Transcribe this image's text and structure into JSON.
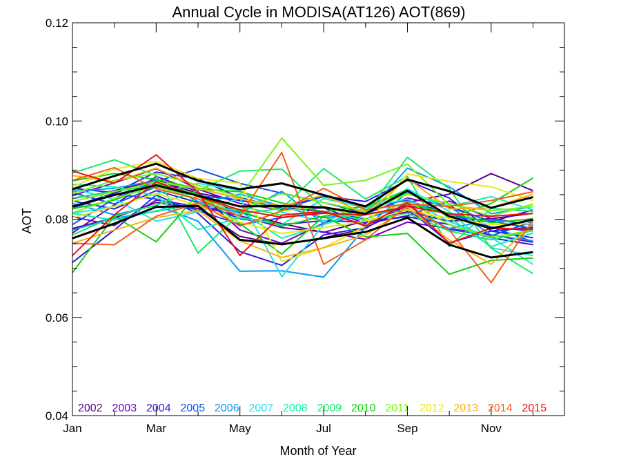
{
  "chart_data": {
    "type": "line",
    "title": "Annual Cycle in MODISA(AT126) AOT(869)",
    "xlabel": "Month of Year",
    "ylabel": "AOT",
    "xlim": [
      1,
      12.75
    ],
    "ylim": [
      0.04,
      0.12
    ],
    "x_ticks": [
      {
        "value": 1,
        "label": "Jan"
      },
      {
        "value": 3,
        "label": "Mar"
      },
      {
        "value": 5,
        "label": "May"
      },
      {
        "value": 7,
        "label": "Jul"
      },
      {
        "value": 9,
        "label": "Sep"
      },
      {
        "value": 11,
        "label": "Nov"
      }
    ],
    "y_ticks": [
      {
        "value": 0.04,
        "label": "0.04"
      },
      {
        "value": 0.06,
        "label": "0.06"
      },
      {
        "value": 0.08,
        "label": "0.08"
      },
      {
        "value": 0.1,
        "label": "0.10"
      },
      {
        "value": 0.12,
        "label": "0.12"
      }
    ],
    "x": [
      1,
      2,
      3,
      4,
      5,
      6,
      7,
      8,
      9,
      10,
      11,
      12
    ],
    "grid": false,
    "legend_position": "bottom-inside",
    "series": [
      {
        "name": "2002",
        "color": "#550088",
        "values": [
          0.0826,
          0.0853,
          0.0882,
          0.0846,
          0.0814,
          0.0791,
          0.0773,
          0.0797,
          0.0815,
          0.0796,
          0.0801,
          0.0812
        ]
      },
      {
        "name": "2002",
        "color": "#550088",
        "values": [
          0.0781,
          0.0803,
          0.0834,
          0.0822,
          0.0765,
          0.0748,
          0.0762,
          0.0781,
          0.0834,
          0.0851,
          0.0893,
          0.0858
        ]
      },
      {
        "name": "2002",
        "color": "#550088",
        "values": [
          0.0842,
          0.0858,
          0.0879,
          0.0853,
          0.0838,
          0.0824,
          0.0816,
          0.0787,
          0.0828,
          0.0812,
          0.0784,
          0.0776
        ]
      },
      {
        "name": "2003",
        "color": "#6a00c0",
        "values": [
          0.0772,
          0.0829,
          0.0887,
          0.0856,
          0.0778,
          0.0751,
          0.0792,
          0.0811,
          0.0843,
          0.0826,
          0.0795,
          0.0819
        ]
      },
      {
        "name": "2003",
        "color": "#6a00c0",
        "values": [
          0.0848,
          0.0874,
          0.0903,
          0.0861,
          0.0832,
          0.0819,
          0.0823,
          0.0791,
          0.0807,
          0.0837,
          0.0801,
          0.0788
        ]
      },
      {
        "name": "2003",
        "color": "#6a00c0",
        "values": [
          0.0805,
          0.0787,
          0.0839,
          0.0826,
          0.0807,
          0.0783,
          0.0774,
          0.0759,
          0.0794,
          0.0781,
          0.0768,
          0.0753
        ]
      },
      {
        "name": "2004",
        "color": "#2a1adc",
        "values": [
          0.0712,
          0.0778,
          0.0849,
          0.0812,
          0.0734,
          0.0706,
          0.0768,
          0.0783,
          0.0822,
          0.0752,
          0.0776,
          0.0762
        ]
      },
      {
        "name": "2004",
        "color": "#2a1adc",
        "values": [
          0.0863,
          0.0854,
          0.0896,
          0.0882,
          0.0844,
          0.0823,
          0.0847,
          0.0836,
          0.0879,
          0.0843,
          0.0776,
          0.0784
        ]
      },
      {
        "name": "2004",
        "color": "#2a1adc",
        "values": [
          0.0837,
          0.0821,
          0.0858,
          0.0834,
          0.0801,
          0.0789,
          0.0797,
          0.0794,
          0.0805,
          0.0789,
          0.0762,
          0.0748
        ]
      },
      {
        "name": "2005",
        "color": "#1050f0",
        "values": [
          0.0789,
          0.0842,
          0.0877,
          0.0902,
          0.0873,
          0.0853,
          0.0834,
          0.0812,
          0.0856,
          0.0824,
          0.0796,
          0.0781
        ]
      },
      {
        "name": "2005",
        "color": "#1050f0",
        "values": [
          0.0854,
          0.0831,
          0.0866,
          0.0848,
          0.0839,
          0.0821,
          0.0846,
          0.0826,
          0.0838,
          0.0811,
          0.0784,
          0.0754
        ]
      },
      {
        "name": "2005",
        "color": "#1050f0",
        "values": [
          0.0822,
          0.0851,
          0.0841,
          0.0818,
          0.0789,
          0.0803,
          0.0814,
          0.0801,
          0.0829,
          0.0779,
          0.0766,
          0.0795
        ]
      },
      {
        "name": "2006",
        "color": "#0a9af0",
        "values": [
          0.0832,
          0.0809,
          0.0828,
          0.0796,
          0.0694,
          0.0695,
          0.0682,
          0.0784,
          0.0854,
          0.0826,
          0.0768,
          0.0756
        ]
      },
      {
        "name": "2006",
        "color": "#0a9af0",
        "values": [
          0.0857,
          0.0863,
          0.0879,
          0.0836,
          0.0812,
          0.0857,
          0.0791,
          0.0809,
          0.0904,
          0.0866,
          0.0811,
          0.0826
        ]
      },
      {
        "name": "2006",
        "color": "#0a9af0",
        "values": [
          0.0778,
          0.0802,
          0.0816,
          0.0832,
          0.0851,
          0.0826,
          0.0803,
          0.0812,
          0.0818,
          0.0781,
          0.0799,
          0.0789
        ]
      },
      {
        "name": "2007",
        "color": "#22e0f0",
        "values": [
          0.0862,
          0.0841,
          0.0796,
          0.0815,
          0.0843,
          0.0683,
          0.0789,
          0.0818,
          0.0862,
          0.0816,
          0.0742,
          0.0726
        ]
      },
      {
        "name": "2007",
        "color": "#22e0f0",
        "values": [
          0.0812,
          0.0826,
          0.0852,
          0.0873,
          0.0858,
          0.0814,
          0.0796,
          0.0823,
          0.0841,
          0.0795,
          0.0763,
          0.0708
        ]
      },
      {
        "name": "2008",
        "color": "#10f0a8",
        "values": [
          0.0871,
          0.0866,
          0.0848,
          0.0779,
          0.0803,
          0.0789,
          0.0842,
          0.0823,
          0.0861,
          0.0803,
          0.0744,
          0.0772
        ]
      },
      {
        "name": "2008",
        "color": "#10f0a8",
        "values": [
          0.0812,
          0.0798,
          0.0817,
          0.0833,
          0.0816,
          0.0761,
          0.0789,
          0.0824,
          0.0853,
          0.0826,
          0.0846,
          0.0819
        ]
      },
      {
        "name": "2009",
        "color": "#1ae86a",
        "values": [
          0.0894,
          0.0921,
          0.0889,
          0.0731,
          0.0811,
          0.0822,
          0.0903,
          0.0841,
          0.0887,
          0.0744,
          0.0822,
          0.0816
        ]
      },
      {
        "name": "2009",
        "color": "#1ae86a",
        "values": [
          0.0768,
          0.0806,
          0.0829,
          0.0858,
          0.0898,
          0.0902,
          0.0823,
          0.0812,
          0.0926,
          0.0862,
          0.0741,
          0.0689
        ]
      },
      {
        "name": "2009",
        "color": "#1ae86a",
        "values": [
          0.0843,
          0.0857,
          0.0869,
          0.0849,
          0.0826,
          0.0808,
          0.0816,
          0.0797,
          0.0812,
          0.0776,
          0.0758,
          0.0777
        ]
      },
      {
        "name": "2010",
        "color": "#12d010",
        "values": [
          0.0691,
          0.0806,
          0.0754,
          0.0852,
          0.0791,
          0.0729,
          0.0806,
          0.0764,
          0.0771,
          0.0688,
          0.0716,
          0.0721
        ]
      },
      {
        "name": "2010",
        "color": "#12d010",
        "values": [
          0.0878,
          0.0893,
          0.0881,
          0.0862,
          0.0856,
          0.0833,
          0.0815,
          0.0826,
          0.0858,
          0.0803,
          0.0832,
          0.0884
        ]
      },
      {
        "name": "2010",
        "color": "#12d010",
        "values": [
          0.0821,
          0.0839,
          0.0872,
          0.0851,
          0.0817,
          0.0786,
          0.0806,
          0.0818,
          0.0832,
          0.0812,
          0.0793,
          0.0801
        ]
      },
      {
        "name": "2011",
        "color": "#7cf01a",
        "values": [
          0.0852,
          0.0879,
          0.0893,
          0.0869,
          0.0846,
          0.0965,
          0.0869,
          0.0879,
          0.0912,
          0.0829,
          0.0817,
          0.0826
        ]
      },
      {
        "name": "2011",
        "color": "#7cf01a",
        "values": [
          0.0813,
          0.0842,
          0.0867,
          0.0841,
          0.0819,
          0.0852,
          0.0834,
          0.0816,
          0.0851,
          0.0832,
          0.0806,
          0.0831
        ]
      },
      {
        "name": "2011",
        "color": "#7cf01a",
        "values": [
          0.0836,
          0.0856,
          0.0876,
          0.0862,
          0.0843,
          0.0817,
          0.0826,
          0.0801,
          0.0836,
          0.0789,
          0.0763,
          0.0778
        ]
      },
      {
        "name": "2012",
        "color": "#e8e81a",
        "values": [
          0.0866,
          0.0902,
          0.0918,
          0.0883,
          0.0873,
          0.0714,
          0.0742,
          0.0786,
          0.0892,
          0.0877,
          0.0866,
          0.0838
        ]
      },
      {
        "name": "2012",
        "color": "#e8e81a",
        "values": [
          0.0803,
          0.0826,
          0.0852,
          0.0829,
          0.0794,
          0.0771,
          0.0783,
          0.0796,
          0.0819,
          0.0802,
          0.0789,
          0.0791
        ]
      },
      {
        "name": "2013",
        "color": "#f8b014",
        "values": [
          0.0751,
          0.0778,
          0.0803,
          0.0818,
          0.0756,
          0.0722,
          0.0742,
          0.0768,
          0.0824,
          0.0758,
          0.0708,
          0.0793
        ]
      },
      {
        "name": "2013",
        "color": "#f8b014",
        "values": [
          0.0889,
          0.0876,
          0.0904,
          0.0864,
          0.0841,
          0.0827,
          0.0849,
          0.0811,
          0.0883,
          0.0821,
          0.0823,
          0.0851
        ]
      },
      {
        "name": "2014",
        "color": "#f06018",
        "values": [
          0.0879,
          0.0905,
          0.0862,
          0.0841,
          0.0806,
          0.0936,
          0.0708,
          0.0758,
          0.0828,
          0.0778,
          0.0671,
          0.0798
        ]
      },
      {
        "name": "2014",
        "color": "#f06018",
        "values": [
          0.0751,
          0.0748,
          0.0806,
          0.0833,
          0.0786,
          0.0817,
          0.0863,
          0.0819,
          0.0831,
          0.0826,
          0.0838,
          0.0856
        ]
      },
      {
        "name": "2015",
        "color": "#ee1010",
        "values": [
          0.0898,
          0.0873,
          0.0931,
          0.0855,
          0.0726,
          0.0808,
          0.0816,
          0.0786,
          0.0834,
          0.0751,
          0.0782,
          0.0779
        ]
      },
      {
        "name": "2015",
        "color": "#ee1010",
        "values": [
          0.0726,
          0.0809,
          0.0876,
          0.0846,
          0.0819,
          0.0804,
          0.0812,
          0.0809,
          0.0826,
          0.0811,
          0.0806,
          0.0812
        ]
      },
      {
        "color": "#000000",
        "width": 3,
        "values": [
          0.0861,
          0.0888,
          0.0913,
          0.0878,
          0.0861,
          0.0873,
          0.0849,
          0.0826,
          0.0881,
          0.0857,
          0.0823,
          0.0845
        ]
      },
      {
        "color": "#000000",
        "width": 3,
        "values": [
          0.0826,
          0.0849,
          0.0869,
          0.0848,
          0.0826,
          0.0827,
          0.0824,
          0.0811,
          0.0858,
          0.0806,
          0.0781,
          0.0799
        ]
      },
      {
        "color": "#000000",
        "width": 3,
        "values": [
          0.0761,
          0.0791,
          0.0825,
          0.0827,
          0.0758,
          0.0749,
          0.0761,
          0.0774,
          0.0803,
          0.0748,
          0.0722,
          0.0733
        ]
      }
    ],
    "legend": [
      {
        "label": "2002",
        "color": "#550088"
      },
      {
        "label": "2003",
        "color": "#6a00c0"
      },
      {
        "label": "2004",
        "color": "#2a1adc"
      },
      {
        "label": "2005",
        "color": "#1050f0"
      },
      {
        "label": "2006",
        "color": "#0a9af0"
      },
      {
        "label": "2007",
        "color": "#22e0f0"
      },
      {
        "label": "2008",
        "color": "#10f0a8"
      },
      {
        "label": "2009",
        "color": "#1ae86a"
      },
      {
        "label": "2010",
        "color": "#12d010"
      },
      {
        "label": "2011",
        "color": "#7cf01a"
      },
      {
        "label": "2012",
        "color": "#e8e81a"
      },
      {
        "label": "2013",
        "color": "#f8b014"
      },
      {
        "label": "2014",
        "color": "#f06018"
      },
      {
        "label": "2015",
        "color": "#ee1010"
      }
    ]
  }
}
